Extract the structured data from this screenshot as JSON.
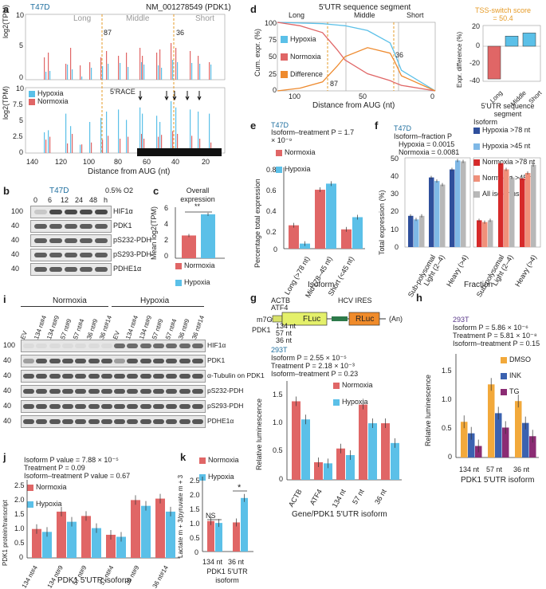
{
  "panels": {
    "a": {
      "letter": "a",
      "cell": "T47D",
      "transcript": "NM_001278549 (PDK1)",
      "segments": [
        "Long",
        "Middle",
        "Short"
      ],
      "marks": [
        "87",
        "36"
      ],
      "ylabel_top": "log2(TPM)",
      "ylabel_bottom": "log2(TPM)",
      "legend": [
        "Hypoxia",
        "Normoxia"
      ],
      "race_label": "5'RACE",
      "yticks_top": [
        "10",
        "5",
        "0"
      ],
      "yticks_bottom": [
        "10",
        "7.5",
        "5",
        "2.5",
        "0"
      ],
      "xticks": [
        "140",
        "120",
        "100",
        "80",
        "60",
        "40",
        "20"
      ],
      "xlabel": "Distance from AUG (nt)"
    },
    "b": {
      "letter": "b",
      "cell": "T47D",
      "o2": "0.5% O2",
      "times": [
        "0",
        "6",
        "12",
        "24",
        "48"
      ],
      "time_unit": "h",
      "bands": [
        "HIF1α",
        "PDK1",
        "pS232-PDH",
        "pS293-PDH",
        "PDHE1α"
      ],
      "mw": [
        "100",
        "40",
        "40",
        "40",
        "40"
      ]
    },
    "c": {
      "letter": "c",
      "title": "Overall expression",
      "ylabel": "Mean log2(TPM)",
      "sig": "**",
      "yticks": [
        "6",
        "4",
        "2",
        "0"
      ],
      "legend": [
        "Normoxia",
        "Hypoxia"
      ]
    },
    "d": {
      "letter": "d",
      "title": "5'UTR sequence segment",
      "segments": [
        "Long",
        "Middle",
        "Short"
      ],
      "ylabel": "Cum. expr. (%)",
      "legend": [
        "Hypoxia",
        "Normoxia",
        "Difference"
      ],
      "yticks": [
        "100",
        "75",
        "50",
        "25",
        "0"
      ],
      "xticks": [
        "100",
        "50",
        "0"
      ],
      "xlabel": "Distance from AUG (nt)",
      "marks": [
        "87",
        "36"
      ],
      "tss_title": "TSS-switch score = 50.4",
      "tss_ylabel": "Expr. difference (%)",
      "tss_yticks": [
        "20",
        "0",
        "-20",
        "-40"
      ],
      "tss_categories": [
        "Long",
        "Middle",
        "Short"
      ],
      "tss_xlabel": "5'UTR sequence segment"
    },
    "e": {
      "letter": "e",
      "cell": "T47D",
      "stat": "Isoform–treatment P = 1.7 × 10⁻⁹",
      "legend": [
        "Normoxia",
        "Hypoxia"
      ],
      "ylabel": "Percentage total expression",
      "yticks": [
        "0.8",
        "0.6",
        "0.4",
        "0.2",
        "0"
      ],
      "categories": [
        "Long (>78 nt)",
        "Mid (78–45 nt)",
        "Short (<45 nt)"
      ],
      "xlabel": "Isoform"
    },
    "f": {
      "letter": "f",
      "cell": "T47D",
      "stat1": "Isoform–fraction P",
      "stat2": "Hypoxia = 0.0015",
      "stat3": "Normoxia = 0.0081",
      "legend_title": "Isoform",
      "legend": [
        "Hypoxia >78 nt",
        "Hypoxia >45 nt",
        "Normoxia >78 nt",
        "Normoxia >45 nt",
        "All isoforms"
      ],
      "ylabel": "Total expression (%)",
      "yticks": [
        "50",
        "40",
        "30",
        "20",
        "10",
        "0"
      ],
      "categories": [
        "Sub-polysomal",
        "Light (2–4)",
        "Heavy (>4)"
      ],
      "xlabel": "Fraction"
    },
    "g": {
      "letter": "g",
      "construct_left": "ACTB",
      "construct_left2": "ATF4",
      "m7g": "m7G",
      "fluc": "FLuc",
      "rluc": "RLuc",
      "ires": "HCV IRES",
      "polya": "(An)",
      "pdk1": "PDK1",
      "lengths": [
        "134 nt",
        "57 nt",
        "36 nt"
      ],
      "cell": "293T",
      "stat1": "Isoform P = 2.55 × 10⁻⁵",
      "stat2": "Treatment P = 2.18 × 10⁻³",
      "stat3": "Isoform–treatment P = 0.23",
      "legend": [
        "Normoxia",
        "Hypoxia"
      ],
      "ylabel": "Relative luminescence",
      "yticks": [
        "1.5",
        "1.0",
        "0.5",
        "0"
      ],
      "categories": [
        "ACTB",
        "ATF4",
        "134 nt",
        "57 nt",
        "36 nt"
      ],
      "xlabel": "Gene/PDK1 5'UTR isoform"
    },
    "h": {
      "letter": "h",
      "cell": "293T",
      "stat1": "Isoform P = 5.86 × 10⁻⁶",
      "stat2": "Treatment P = 5.81 × 10⁻⁸",
      "stat3": "Isoform–treatment P = 0.15",
      "legend": [
        "DMSO",
        "INK",
        "TG"
      ],
      "ylabel": "Relative luminescence",
      "yticks": [
        "1.5",
        "1.0",
        "0.5",
        "0"
      ],
      "categories": [
        "134 nt",
        "57 nt",
        "36 nt"
      ],
      "xlabel": "PDK1 5'UTR isoform"
    },
    "i": {
      "letter": "i",
      "groups": [
        "Normoxia",
        "Hypoxia"
      ],
      "lanes": [
        "EV",
        "134 nt#4",
        "134 nt#9",
        "57 nt#9",
        "57 nt#4",
        "36 nt#9",
        "36 nt#14"
      ],
      "bands": [
        "HIF1α",
        "PDK1",
        "α-Tubulin on PDK1",
        "pS232-PDH",
        "pS293-PDH",
        "PDHE1α"
      ],
      "mw": [
        "100",
        "40",
        "40",
        "40",
        "40",
        "40"
      ]
    },
    "j": {
      "letter": "j",
      "stat1": "Isoform P value = 7.88 × 10⁻⁵",
      "stat2": "Treatment P = 0.09",
      "stat3": "Isoform–treatment P value = 0.67",
      "legend": [
        "Normoxia",
        "Hypoxia"
      ],
      "ylabel": "PDK1 protein/transcript",
      "yticks": [
        "2.5",
        "2.0",
        "1.5",
        "1.0",
        "0.5",
        "0"
      ],
      "categories": [
        "134 nt#4",
        "134 nt#9",
        "57 nt#9",
        "57 nt#4",
        "36 nt#9",
        "36 nt#14"
      ],
      "xlabel": "PDK1 5'UTR isoform"
    },
    "k": {
      "letter": "k",
      "legend": [
        "Normoxia",
        "Hypoxia"
      ],
      "ylabel": "Lactate m + 3/pyruvate m + 3",
      "yticks": [
        "2.5",
        "2.0",
        "1.5",
        "1.0",
        "0.5",
        "0"
      ],
      "sig_ns": "NS",
      "sig_star": "*",
      "categories": [
        "134 nt",
        "36 nt"
      ],
      "xlabel": "PDK1 5'UTR isoform"
    }
  },
  "colors": {
    "normoxia": "#e06666",
    "hypoxia": "#5bc0e8",
    "difference": "#ee8a2e",
    "dmso": "#f2a93b",
    "ink": "#3b62b0",
    "tg": "#8b2c74",
    "hyp78": "#2f4f9c",
    "hyp45": "#7fb8e6",
    "nor78": "#d62a2a",
    "nor45": "#f0907a",
    "all": "#b8b8b8"
  },
  "chart_data": [
    {
      "type": "bar",
      "title": "c Overall expression",
      "categories": [
        "Normoxia",
        "Hypoxia"
      ],
      "values": [
        2.9,
        5.6
      ],
      "ylim": [
        0,
        6.5
      ],
      "ylabel": "Mean log2(TPM)"
    },
    {
      "type": "line",
      "title": "d 5'UTR sequence segment",
      "series": [
        {
          "name": "Hypoxia",
          "x": [
            140,
            120,
            100,
            87,
            80,
            60,
            40,
            36,
            30,
            0
          ],
          "y": [
            100,
            99,
            98,
            96,
            95,
            88,
            70,
            55,
            30,
            0
          ]
        },
        {
          "name": "Normoxia",
          "x": [
            140,
            120,
            100,
            87,
            80,
            60,
            40,
            36,
            30,
            0
          ],
          "y": [
            100,
            95,
            85,
            60,
            45,
            25,
            15,
            12,
            8,
            0
          ]
        },
        {
          "name": "Difference",
          "x": [
            140,
            120,
            100,
            87,
            80,
            60,
            40,
            36,
            30,
            0
          ],
          "y": [
            0,
            4,
            13,
            36,
            50,
            63,
            55,
            43,
            22,
            0
          ]
        }
      ],
      "xlabel": "Distance from AUG (nt)",
      "ylabel": "Cum. expr. (%)",
      "ylim": [
        0,
        100
      ]
    },
    {
      "type": "bar",
      "title": "d TSS-switch score = 50.4",
      "categories": [
        "Long",
        "Middle",
        "Short"
      ],
      "values": [
        -42,
        13,
        17
      ],
      "ylim": [
        -45,
        25
      ],
      "ylabel": "Expr. difference (%)"
    },
    {
      "type": "bar",
      "title": "e Isoform–treatment P = 1.7 × 10⁻⁹",
      "categories": [
        "Long (>78 nt)",
        "Mid (78–45 nt)",
        "Short (<45 nt)"
      ],
      "series": [
        {
          "name": "Normoxia",
          "values": [
            0.23,
            0.58,
            0.19
          ]
        },
        {
          "name": "Hypoxia",
          "values": [
            0.05,
            0.64,
            0.31
          ]
        }
      ],
      "ylim": [
        0,
        0.8
      ]
    },
    {
      "type": "bar",
      "title": "f Isoform–fraction",
      "categories": [
        "Sub-polysomal",
        "Light (2–4)",
        "Heavy (>4)"
      ],
      "series": [
        {
          "name": "Hypoxia >78 nt",
          "values": [
            17.5,
            39,
            43.5
          ]
        },
        {
          "name": "Hypoxia >45 nt",
          "values": [
            15.5,
            37,
            48.5
          ]
        },
        {
          "name": "All isoforms (hyp)",
          "values": [
            17.5,
            35,
            48
          ]
        },
        {
          "name": "Normoxia >78 nt",
          "values": [
            15,
            47,
            38.5
          ]
        },
        {
          "name": "Normoxia >45 nt",
          "values": [
            14,
            43.5,
            41.5
          ]
        },
        {
          "name": "All isoforms (nor)",
          "values": [
            15,
            39,
            46
          ]
        }
      ],
      "ylim": [
        0,
        50
      ]
    },
    {
      "type": "bar",
      "title": "g 293T luciferase",
      "categories": [
        "ACTB",
        "ATF4",
        "134 nt",
        "57 nt",
        "36 nt"
      ],
      "series": [
        {
          "name": "Normoxia",
          "values": [
            1.43,
            0.32,
            0.57,
            1.37,
            1.03
          ]
        },
        {
          "name": "Hypoxia",
          "values": [
            1.1,
            0.3,
            0.45,
            1.03,
            0.67
          ]
        }
      ],
      "ylim": [
        0,
        1.8
      ]
    },
    {
      "type": "bar",
      "title": "h 293T treatments",
      "categories": [
        "134 nt",
        "57 nt",
        "36 nt"
      ],
      "series": [
        {
          "name": "DMSO",
          "values": [
            0.62,
            1.27,
            0.98
          ]
        },
        {
          "name": "INK",
          "values": [
            0.42,
            0.77,
            0.6
          ]
        },
        {
          "name": "TG",
          "values": [
            0.2,
            0.52,
            0.37
          ]
        }
      ],
      "ylim": [
        0,
        1.8
      ]
    },
    {
      "type": "bar",
      "title": "j PDK1 protein/transcript",
      "categories": [
        "134 nt#4",
        "134 nt#9",
        "57 nt#9",
        "57 nt#4",
        "36 nt#9",
        "36 nt#14"
      ],
      "series": [
        {
          "name": "Normoxia",
          "values": [
            1.0,
            1.6,
            1.45,
            0.8,
            2.0,
            2.05
          ]
        },
        {
          "name": "Hypoxia",
          "values": [
            0.9,
            1.25,
            1.03,
            0.73,
            1.8,
            1.6
          ]
        }
      ],
      "ylim": [
        0,
        2.7
      ]
    },
    {
      "type": "bar",
      "title": "k Lactate/pyruvate",
      "categories": [
        "134 nt",
        "36 nt"
      ],
      "series": [
        {
          "name": "Normoxia",
          "values": [
            1.1,
            1.05
          ]
        },
        {
          "name": "Hypoxia",
          "values": [
            1.03,
            1.93
          ]
        }
      ],
      "ylim": [
        0,
        2.7
      ]
    }
  ]
}
